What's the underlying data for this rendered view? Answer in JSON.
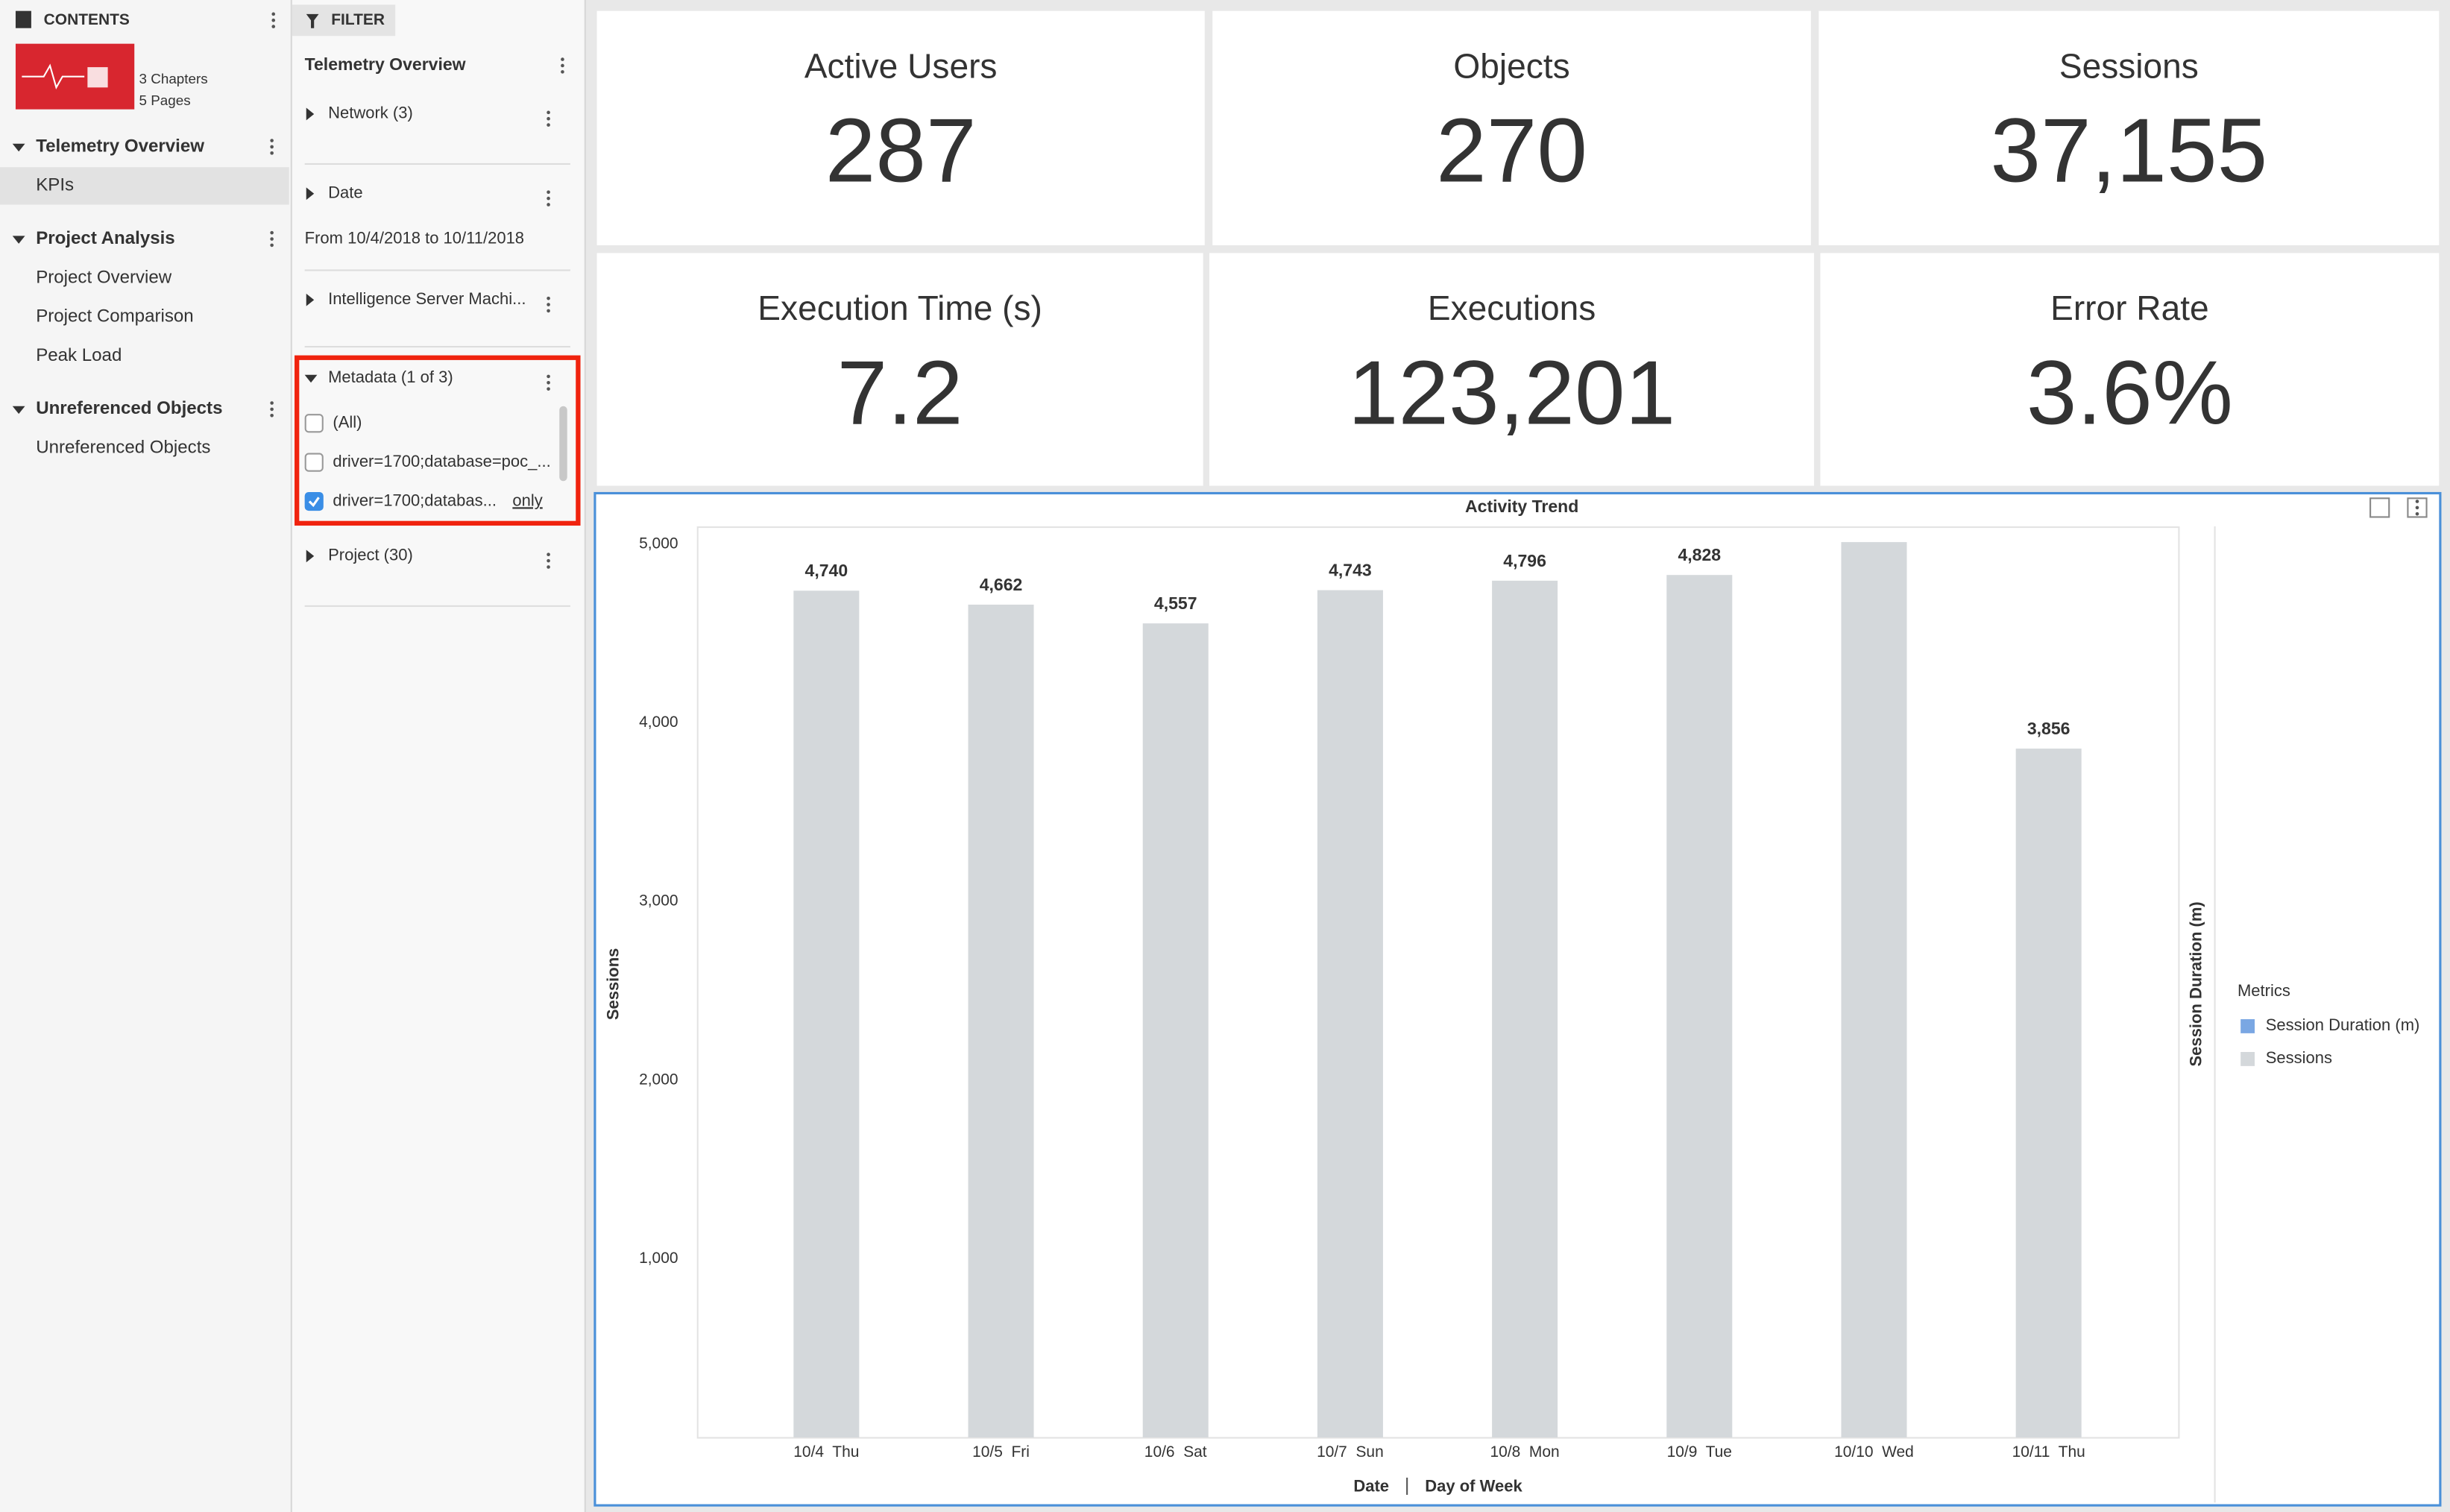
{
  "contents": {
    "header": "CONTENTS",
    "stats": [
      "3 Chapters",
      "5 Pages"
    ],
    "chapters": [
      {
        "title": "Telemetry Overview",
        "pages": [
          "KPIs"
        ]
      },
      {
        "title": "Project Analysis",
        "pages": [
          "Project Overview",
          "Project Comparison",
          "Peak Load"
        ]
      },
      {
        "title": "Unreferenced Objects",
        "pages": [
          "Unreferenced Objects"
        ]
      }
    ]
  },
  "filter": {
    "header": "FILTER",
    "title": "Telemetry Overview",
    "items": [
      {
        "label": "Network (3)"
      },
      {
        "label": "Date",
        "detail": "From 10/4/2018 to 10/11/2018"
      },
      {
        "label": "Intelligence Server Machi..."
      },
      {
        "label": "Metadata (1 of 3)",
        "options": [
          "(All)",
          "driver=1700;database=poc_...",
          "driver=1700;databas..."
        ],
        "checked": [
          false,
          false,
          true
        ],
        "action": "only"
      },
      {
        "label": "Project (30)"
      }
    ]
  },
  "kpis": [
    {
      "label": "Active Users",
      "value": "287"
    },
    {
      "label": "Objects",
      "value": "270"
    },
    {
      "label": "Sessions",
      "value": "37,155"
    },
    {
      "label": "Execution Time (s)",
      "value": "7.2"
    },
    {
      "label": "Executions",
      "value": "123,201"
    },
    {
      "label": "Error Rate",
      "value": "3.6%"
    }
  ],
  "chart_data": {
    "type": "bar",
    "title": "Activity Trend",
    "categories": [
      "10/4  Thu",
      "10/5  Fri",
      "10/6  Sat",
      "10/7  Sun",
      "10/8  Mon",
      "10/9  Tue",
      "10/10  Wed",
      "10/11  Thu"
    ],
    "values": [
      4740,
      4662,
      4557,
      4743,
      4796,
      4828,
      5012,
      3856
    ],
    "value_labels": [
      "4,740",
      "4,662",
      "4,557",
      "4,743",
      "4,796",
      "4,828",
      null,
      "3,856"
    ],
    "color": "#d4d8db",
    "ylim": [
      0,
      5100
    ],
    "yticks": [
      {
        "value": 1000,
        "label": "1,000"
      },
      {
        "value": 2000,
        "label": "2,000"
      },
      {
        "value": 3000,
        "label": "3,000"
      },
      {
        "value": 4000,
        "label": "4,000"
      },
      {
        "value": 5000,
        "label": "5,000"
      }
    ],
    "grid": false,
    "y_label": "Sessions",
    "y2_label": "Session Duration (m)",
    "x_label": "Date",
    "x_label2": "Day of Week",
    "legend": {
      "title": "Metrics",
      "items": [
        {
          "name": "Session Duration (m)",
          "color": "#7aa7e3"
        },
        {
          "name": "Sessions",
          "color": "#d4d8db"
        }
      ]
    }
  }
}
